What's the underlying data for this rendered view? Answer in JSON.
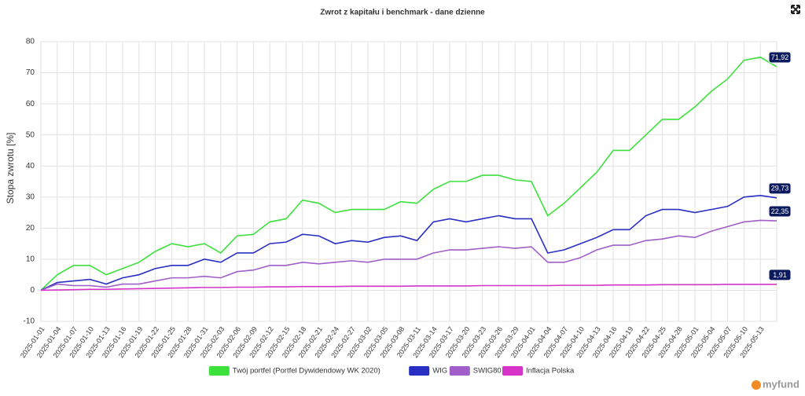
{
  "chart_data": {
    "type": "line",
    "title": "Zwrot z kapitału i benchmark - dane dzienne",
    "y_label": "Stopa zwrotu [%]",
    "categories": [
      "2025-01-01",
      "2025-01-04",
      "2025-01-07",
      "2025-01-10",
      "2025-01-13",
      "2025-01-16",
      "2025-01-19",
      "2025-01-22",
      "2025-01-25",
      "2025-01-28",
      "2025-01-31",
      "2025-02-03",
      "2025-02-06",
      "2025-02-09",
      "2025-02-12",
      "2025-02-15",
      "2025-02-18",
      "2025-02-21",
      "2025-02-24",
      "2025-02-27",
      "2025-03-02",
      "2025-03-05",
      "2025-03-08",
      "2025-03-11",
      "2025-03-14",
      "2025-03-17",
      "2025-03-20",
      "2025-03-23",
      "2025-03-26",
      "2025-03-29",
      "2025-04-01",
      "2025-04-04",
      "2025-04-07",
      "2025-04-10",
      "2025-04-13",
      "2025-04-16",
      "2025-04-19",
      "2025-04-22",
      "2025-04-25",
      "2025-04-28",
      "2025-05-01",
      "2025-05-04",
      "2025-05-07",
      "2025-05-10",
      "2025-05-13",
      null
    ],
    "series": [
      {
        "name": "Twój portfel (Portfel Dywidendowy WK 2020)",
        "color": "#3ee03e",
        "values": [
          0,
          5,
          8,
          8,
          5,
          7,
          9,
          12.5,
          15,
          14,
          15,
          12,
          17.5,
          18,
          22,
          23,
          29,
          28,
          25,
          26,
          26,
          26,
          28.5,
          28,
          32.5,
          35,
          35,
          37,
          37,
          35.5,
          35,
          24,
          28,
          33,
          38,
          45,
          45,
          50,
          55,
          55,
          59,
          64,
          68,
          74,
          75,
          71.92
        ],
        "value_labels": [
          null,
          null,
          null,
          null,
          null,
          null,
          null,
          null,
          null,
          null,
          null,
          null,
          null,
          null,
          null,
          null,
          null,
          null,
          null,
          null,
          null,
          null,
          null,
          null,
          null,
          null,
          null,
          null,
          null,
          null,
          null,
          null,
          null,
          null,
          null,
          null,
          null,
          null,
          null,
          null,
          null,
          null,
          null,
          null,
          null,
          "71,92"
        ]
      },
      {
        "name": "WIG",
        "color": "#2a2fc4",
        "values": [
          0,
          2.5,
          3,
          3.5,
          2,
          4,
          5,
          7,
          8,
          8,
          10,
          9,
          12,
          12,
          15,
          15.5,
          18,
          17.5,
          15,
          16,
          15.5,
          17,
          17.5,
          16,
          22,
          23,
          22,
          23,
          24,
          23,
          23,
          12,
          13,
          15,
          17,
          19.5,
          19.5,
          24,
          26,
          26,
          25,
          26,
          27,
          30,
          30.5,
          29.73
        ],
        "value_labels": [
          null,
          null,
          null,
          null,
          null,
          null,
          null,
          null,
          null,
          null,
          null,
          null,
          null,
          null,
          null,
          null,
          null,
          null,
          null,
          null,
          null,
          null,
          null,
          null,
          null,
          null,
          null,
          null,
          null,
          null,
          null,
          null,
          null,
          null,
          null,
          null,
          null,
          null,
          null,
          null,
          null,
          null,
          null,
          null,
          null,
          "29,73"
        ]
      },
      {
        "name": "SWIG80",
        "color": "#a05fc8",
        "values": [
          0,
          2,
          1.5,
          1.5,
          1,
          2,
          2,
          3,
          4,
          4,
          4.5,
          4,
          6,
          6.5,
          8,
          8,
          9,
          8.5,
          9,
          9.5,
          9,
          10,
          10,
          10,
          12,
          13,
          13,
          13.5,
          14,
          13.5,
          14,
          9,
          9,
          10.5,
          13,
          14.5,
          14.5,
          16,
          16.5,
          17.5,
          17,
          19,
          20.5,
          22,
          22.5,
          22.35
        ],
        "value_labels": [
          null,
          null,
          null,
          null,
          null,
          null,
          null,
          null,
          null,
          null,
          null,
          null,
          null,
          null,
          null,
          null,
          null,
          null,
          null,
          null,
          null,
          null,
          null,
          null,
          null,
          null,
          null,
          null,
          null,
          null,
          null,
          null,
          null,
          null,
          null,
          null,
          null,
          null,
          null,
          null,
          null,
          null,
          null,
          null,
          null,
          "22,35"
        ]
      },
      {
        "name": "Inflacja  Polska",
        "color": "#d633c8",
        "values": [
          0,
          0.1,
          0.2,
          0.3,
          0.3,
          0.4,
          0.5,
          0.6,
          0.7,
          0.8,
          0.9,
          0.9,
          1.0,
          1.0,
          1.1,
          1.1,
          1.2,
          1.2,
          1.2,
          1.3,
          1.3,
          1.3,
          1.3,
          1.4,
          1.4,
          1.4,
          1.4,
          1.5,
          1.5,
          1.5,
          1.5,
          1.5,
          1.6,
          1.6,
          1.6,
          1.7,
          1.7,
          1.7,
          1.8,
          1.8,
          1.8,
          1.8,
          1.9,
          1.9,
          1.9,
          1.91
        ],
        "value_labels": [
          null,
          null,
          null,
          null,
          null,
          null,
          null,
          null,
          null,
          null,
          null,
          null,
          null,
          null,
          null,
          null,
          null,
          null,
          null,
          null,
          null,
          null,
          null,
          null,
          null,
          null,
          null,
          null,
          null,
          null,
          null,
          null,
          null,
          null,
          null,
          null,
          null,
          null,
          null,
          null,
          null,
          null,
          null,
          null,
          null,
          "1,91"
        ]
      }
    ],
    "ylim": [
      -10,
      80
    ],
    "yticks": [
      -10,
      0,
      10,
      20,
      30,
      40,
      50,
      60,
      70,
      80
    ],
    "grid": true,
    "legend": "bottom",
    "logo": "myfund"
  }
}
